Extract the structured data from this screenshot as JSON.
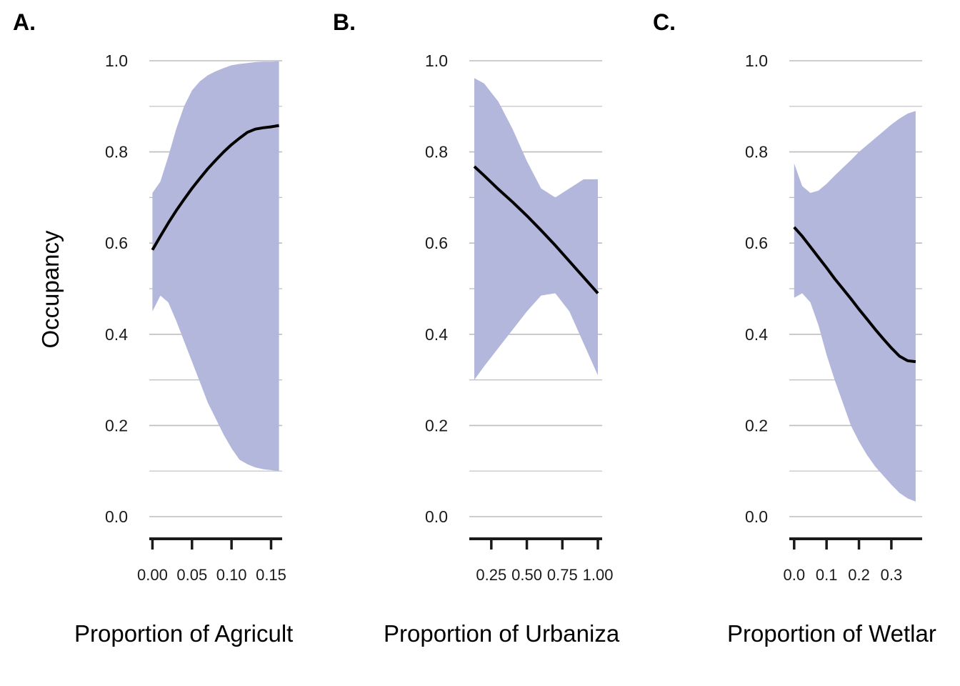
{
  "y_axis_label": "Occupancy",
  "colors": {
    "ribbon": "#b4b7dc",
    "line": "#000000",
    "grid": "#bdbdbd",
    "axis": "#1a1a1a"
  },
  "chart_data": [
    {
      "type": "line",
      "panel_label": "A.",
      "xlabel": "Proportion of Agricult",
      "ylabel": "Occupancy",
      "xlim": [
        -0.004,
        0.164
      ],
      "ylim": [
        -0.05,
        1.0
      ],
      "x_ticks": [
        0.0,
        0.05,
        0.1,
        0.15
      ],
      "x_tick_labels": [
        "0.00",
        "0.05",
        "0.10",
        "0.15"
      ],
      "y_ticks": [
        0.0,
        0.2,
        0.4,
        0.6,
        0.8,
        1.0
      ],
      "y_tick_labels": [
        "0.0",
        "0.2",
        "0.4",
        "0.6",
        "0.8",
        "1.0"
      ],
      "grid": true,
      "x": [
        0.0,
        0.01,
        0.02,
        0.03,
        0.04,
        0.05,
        0.06,
        0.07,
        0.08,
        0.09,
        0.1,
        0.11,
        0.12,
        0.13,
        0.14,
        0.15,
        0.16
      ],
      "estimate": [
        0.585,
        0.615,
        0.644,
        0.671,
        0.696,
        0.72,
        0.742,
        0.763,
        0.782,
        0.8,
        0.816,
        0.83,
        0.843,
        0.85,
        0.853,
        0.855,
        0.858
      ],
      "upper": [
        0.71,
        0.735,
        0.79,
        0.85,
        0.9,
        0.935,
        0.955,
        0.968,
        0.977,
        0.984,
        0.99,
        0.993,
        0.995,
        0.997,
        0.998,
        0.998,
        0.999
      ],
      "lower": [
        0.45,
        0.485,
        0.47,
        0.43,
        0.385,
        0.34,
        0.295,
        0.25,
        0.215,
        0.18,
        0.15,
        0.125,
        0.115,
        0.108,
        0.104,
        0.102,
        0.1
      ]
    },
    {
      "type": "line",
      "panel_label": "B.",
      "xlabel": "Proportion of Urbaniza",
      "ylabel": "Occupancy",
      "xlim": [
        0.095,
        1.03
      ],
      "ylim": [
        -0.05,
        1.0
      ],
      "x_ticks": [
        0.25,
        0.5,
        0.75,
        1.0
      ],
      "x_tick_labels": [
        "0.25",
        "0.50",
        "0.75",
        "1.00"
      ],
      "y_ticks": [
        0.0,
        0.2,
        0.4,
        0.6,
        0.8,
        1.0
      ],
      "y_tick_labels": [
        "0.0",
        "0.2",
        "0.4",
        "0.6",
        "0.8",
        "1.0"
      ],
      "grid": true,
      "x": [
        0.13,
        0.2,
        0.3,
        0.4,
        0.5,
        0.6,
        0.7,
        0.8,
        0.9,
        1.0
      ],
      "estimate": [
        0.768,
        0.748,
        0.718,
        0.69,
        0.66,
        0.628,
        0.595,
        0.56,
        0.525,
        0.49
      ],
      "upper": [
        0.962,
        0.95,
        0.91,
        0.85,
        0.78,
        0.72,
        0.7,
        0.72,
        0.74,
        0.74
      ],
      "lower": [
        0.3,
        0.33,
        0.37,
        0.41,
        0.45,
        0.485,
        0.49,
        0.45,
        0.38,
        0.31
      ]
    },
    {
      "type": "line",
      "panel_label": "C.",
      "xlabel": "Proportion of Wetlar",
      "ylabel": "Occupancy",
      "xlim": [
        -0.015,
        0.395
      ],
      "ylim": [
        -0.05,
        1.0
      ],
      "x_ticks": [
        0.0,
        0.1,
        0.2,
        0.3
      ],
      "x_tick_labels": [
        "0.0",
        "0.1",
        "0.2",
        "0.3"
      ],
      "y_ticks": [
        0.0,
        0.2,
        0.4,
        0.6,
        0.8,
        1.0
      ],
      "y_tick_labels": [
        "0.0",
        "0.2",
        "0.4",
        "0.6",
        "0.8",
        "1.0"
      ],
      "grid": true,
      "x": [
        0.0,
        0.025,
        0.05,
        0.075,
        0.1,
        0.125,
        0.15,
        0.175,
        0.2,
        0.225,
        0.25,
        0.275,
        0.3,
        0.325,
        0.35,
        0.375
      ],
      "estimate": [
        0.635,
        0.615,
        0.592,
        0.569,
        0.546,
        0.522,
        0.5,
        0.478,
        0.455,
        0.433,
        0.411,
        0.39,
        0.37,
        0.352,
        0.342,
        0.34
      ],
      "upper": [
        0.775,
        0.725,
        0.71,
        0.715,
        0.73,
        0.748,
        0.765,
        0.782,
        0.8,
        0.815,
        0.83,
        0.845,
        0.86,
        0.873,
        0.884,
        0.89
      ],
      "lower": [
        0.48,
        0.49,
        0.47,
        0.42,
        0.355,
        0.3,
        0.25,
        0.2,
        0.165,
        0.135,
        0.11,
        0.09,
        0.07,
        0.052,
        0.04,
        0.033
      ]
    }
  ]
}
